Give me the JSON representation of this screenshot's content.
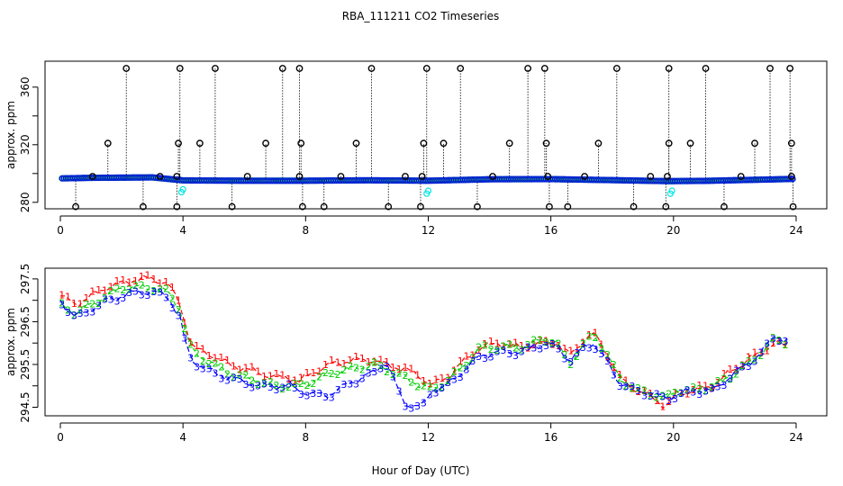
{
  "title": "RBA_111211  CO2 Timeseries",
  "xlabel": "Hour of Day (UTC)",
  "colors": {
    "black": "#000000",
    "blue": "#0000ff",
    "green": "#00cc00",
    "red": "#ff0000",
    "cyan": "#00e5e5"
  },
  "chart_data": [
    {
      "type": "scatter",
      "title": "",
      "xlabel": "",
      "ylabel": "approx. ppm",
      "xlim": [
        -0.5,
        25
      ],
      "ylim": [
        275.5,
        378
      ],
      "xticks": [
        0,
        4,
        8,
        12,
        16,
        20,
        24
      ],
      "yticks": [
        280,
        300,
        320,
        340,
        360
      ],
      "ytick_labels": [
        "280",
        "",
        "320",
        "",
        "360"
      ],
      "baseline": [
        [
          0,
          296.6
        ],
        [
          1,
          297.0
        ],
        [
          3,
          297.3
        ],
        [
          4,
          295.2
        ],
        [
          6,
          295.0
        ],
        [
          8,
          295.0
        ],
        [
          10,
          295.3
        ],
        [
          12,
          295.0
        ],
        [
          14,
          296.0
        ],
        [
          16,
          296.1
        ],
        [
          18,
          295.4
        ],
        [
          19.8,
          294.7
        ],
        [
          21,
          294.9
        ],
        [
          23,
          295.8
        ],
        [
          23.8,
          296.2
        ]
      ],
      "high_spikes": [
        2.15,
        3.9,
        5.05,
        7.25,
        7.8,
        10.15,
        11.95,
        13.05,
        15.25,
        15.8,
        18.15,
        19.85,
        21.05,
        23.15,
        23.8
      ],
      "mid_spikes": [
        1.55,
        3.85,
        4.55,
        6.7,
        7.85,
        9.65,
        11.85,
        12.5,
        14.65,
        15.85,
        17.55,
        19.85,
        20.55,
        22.65,
        23.85
      ],
      "low_spikes": [
        0.5,
        2.7,
        3.8,
        5.6,
        7.9,
        8.6,
        10.7,
        11.75,
        13.6,
        15.95,
        16.55,
        18.7,
        19.75,
        21.65,
        23.9
      ],
      "near_spikes": [
        1.05,
        3.25,
        3.8,
        6.1,
        7.8,
        9.15,
        11.25,
        11.8,
        14.1,
        15.9,
        17.1,
        19.25,
        19.8,
        22.2,
        23.85
      ],
      "values": {
        "high": 373,
        "mid": 321,
        "low": 277,
        "near": 298
      },
      "cyan_points": [
        [
          3.95,
          287
        ],
        [
          4.0,
          289
        ],
        [
          11.95,
          286
        ],
        [
          12.0,
          288
        ],
        [
          19.9,
          286
        ],
        [
          19.95,
          288
        ]
      ]
    },
    {
      "type": "line",
      "title": "",
      "xlabel": "Hour of Day (UTC)",
      "ylabel": "approx. ppm",
      "xlim": [
        -0.5,
        25
      ],
      "ylim": [
        294.3,
        297.75
      ],
      "xticks": [
        0,
        4,
        8,
        12,
        16,
        20,
        24
      ],
      "yticks": [
        294.5,
        295.0,
        295.5,
        296.0,
        296.5,
        297.0,
        297.5
      ],
      "ytick_labels": [
        "294.5",
        "",
        "295.5",
        "",
        "296.5",
        "",
        "297.5"
      ],
      "series": [
        {
          "name": "1",
          "color": "#ff0000",
          "points": [
            [
              0,
              297.1
            ],
            [
              0.5,
              296.9
            ],
            [
              1,
              297.1
            ],
            [
              1.5,
              297.3
            ],
            [
              2,
              297.4
            ],
            [
              2.5,
              297.5
            ],
            [
              3,
              297.5
            ],
            [
              3.5,
              297.4
            ],
            [
              3.9,
              296.9
            ],
            [
              4.1,
              296.4
            ],
            [
              4.3,
              295.9
            ],
            [
              5,
              295.7
            ],
            [
              5.5,
              295.5
            ],
            [
              6,
              295.4
            ],
            [
              6.5,
              295.3
            ],
            [
              7,
              295.2
            ],
            [
              7.5,
              295.2
            ],
            [
              7.8,
              295.1
            ],
            [
              8.2,
              295.3
            ],
            [
              8.8,
              295.5
            ],
            [
              9.5,
              295.6
            ],
            [
              10.2,
              295.6
            ],
            [
              10.6,
              295.5
            ],
            [
              11.2,
              295.4
            ],
            [
              11.8,
              295.2
            ],
            [
              12.1,
              295.0
            ],
            [
              12.6,
              295.2
            ],
            [
              13.2,
              295.6
            ],
            [
              13.7,
              295.9
            ],
            [
              14.3,
              296.0
            ],
            [
              15,
              295.9
            ],
            [
              15.8,
              296.0
            ],
            [
              16.2,
              296.0
            ],
            [
              16.6,
              295.7
            ],
            [
              17.1,
              296.1
            ],
            [
              17.4,
              296.2
            ],
            [
              17.8,
              295.8
            ],
            [
              18.2,
              295.2
            ],
            [
              18.8,
              294.9
            ],
            [
              19.4,
              294.7
            ],
            [
              19.75,
              294.5
            ],
            [
              20.1,
              294.8
            ],
            [
              20.7,
              294.9
            ],
            [
              21.3,
              295.0
            ],
            [
              21.8,
              295.3
            ],
            [
              22.4,
              295.6
            ],
            [
              22.9,
              295.8
            ],
            [
              23.3,
              296.0
            ],
            [
              23.8,
              295.9
            ]
          ]
        },
        {
          "name": "2",
          "color": "#00cc00",
          "points": [
            [
              0,
              296.9
            ],
            [
              0.5,
              296.7
            ],
            [
              1,
              296.9
            ],
            [
              1.5,
              297.1
            ],
            [
              2,
              297.3
            ],
            [
              2.5,
              297.3
            ],
            [
              3,
              297.3
            ],
            [
              3.5,
              297.2
            ],
            [
              3.9,
              296.8
            ],
            [
              4.1,
              296.2
            ],
            [
              4.3,
              295.8
            ],
            [
              5,
              295.5
            ],
            [
              5.5,
              295.3
            ],
            [
              6,
              295.2
            ],
            [
              6.5,
              295.1
            ],
            [
              7,
              295.0
            ],
            [
              7.5,
              295.0
            ],
            [
              7.8,
              295.0
            ],
            [
              8.2,
              295.1
            ],
            [
              8.8,
              295.3
            ],
            [
              9.5,
              295.4
            ],
            [
              10.2,
              295.5
            ],
            [
              10.6,
              295.4
            ],
            [
              11.2,
              295.2
            ],
            [
              11.8,
              295.0
            ],
            [
              12.1,
              294.9
            ],
            [
              12.6,
              295.1
            ],
            [
              13.2,
              295.5
            ],
            [
              13.7,
              295.9
            ],
            [
              14.3,
              295.9
            ],
            [
              15,
              295.9
            ],
            [
              15.8,
              296.1
            ],
            [
              16.2,
              296.0
            ],
            [
              16.6,
              295.5
            ],
            [
              17.1,
              296.0
            ],
            [
              17.4,
              296.2
            ],
            [
              17.8,
              295.8
            ],
            [
              18.2,
              295.2
            ],
            [
              18.8,
              294.9
            ],
            [
              19.4,
              294.8
            ],
            [
              19.75,
              294.7
            ],
            [
              20.1,
              294.9
            ],
            [
              20.7,
              294.9
            ],
            [
              21.3,
              295.0
            ],
            [
              21.8,
              295.2
            ],
            [
              22.4,
              295.5
            ],
            [
              22.9,
              295.8
            ],
            [
              23.3,
              296.1
            ],
            [
              23.8,
              296.0
            ]
          ]
        },
        {
          "name": "3",
          "color": "#0000ff",
          "points": [
            [
              0,
              297.0
            ],
            [
              0.5,
              296.6
            ],
            [
              1,
              296.8
            ],
            [
              1.5,
              297.0
            ],
            [
              2,
              297.1
            ],
            [
              2.5,
              297.2
            ],
            [
              3,
              297.2
            ],
            [
              3.5,
              297.1
            ],
            [
              3.9,
              296.6
            ],
            [
              4.1,
              295.9
            ],
            [
              4.3,
              295.6
            ],
            [
              5,
              295.3
            ],
            [
              5.5,
              295.2
            ],
            [
              6,
              295.1
            ],
            [
              6.5,
              295.0
            ],
            [
              7,
              295.0
            ],
            [
              7.5,
              295.0
            ],
            [
              7.8,
              294.9
            ],
            [
              8.2,
              294.8
            ],
            [
              8.8,
              294.8
            ],
            [
              9.5,
              295.1
            ],
            [
              10.2,
              295.3
            ],
            [
              10.6,
              295.6
            ],
            [
              11.2,
              294.6
            ],
            [
              11.8,
              294.5
            ],
            [
              12.1,
              294.9
            ],
            [
              12.6,
              295.0
            ],
            [
              13.2,
              295.4
            ],
            [
              13.7,
              295.7
            ],
            [
              14.3,
              295.8
            ],
            [
              15,
              295.8
            ],
            [
              15.8,
              296.0
            ],
            [
              16.2,
              295.9
            ],
            [
              16.6,
              295.6
            ],
            [
              17.1,
              295.9
            ],
            [
              17.4,
              296.0
            ],
            [
              17.8,
              295.6
            ],
            [
              18.2,
              295.1
            ],
            [
              18.8,
              294.9
            ],
            [
              19.4,
              294.8
            ],
            [
              19.75,
              294.7
            ],
            [
              20.1,
              294.8
            ],
            [
              20.7,
              294.9
            ],
            [
              21.3,
              294.9
            ],
            [
              21.8,
              295.2
            ],
            [
              22.4,
              295.5
            ],
            [
              22.9,
              295.8
            ],
            [
              23.3,
              296.2
            ],
            [
              23.8,
              296.0
            ]
          ]
        }
      ]
    }
  ]
}
